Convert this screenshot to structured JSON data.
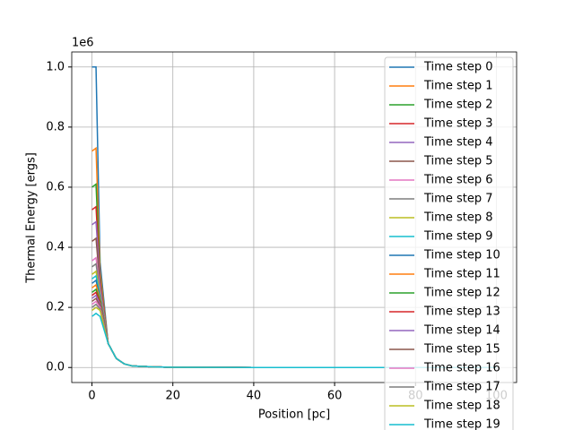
{
  "chart_data": {
    "type": "line",
    "x_label": "Position [pc]",
    "y_label": "Thermal Energy [ergs]",
    "y_offset_label": "1e6",
    "x": [
      0,
      1,
      2,
      4,
      6,
      8,
      10,
      15,
      20,
      40,
      60,
      80,
      100
    ],
    "xlim": [
      -5,
      105
    ],
    "xticks": [
      0,
      20,
      40,
      60,
      80,
      100
    ],
    "ylim": [
      -0.05,
      1.05
    ],
    "yticks": [
      {
        "value": 0,
        "label": "0.0"
      },
      0.2,
      0.4,
      0.6,
      0.8,
      {
        "value": 1,
        "label": "1.0"
      }
    ],
    "grid": true,
    "legend": "upper right",
    "series": [
      {
        "name": "Time step 0",
        "color": "#1f77b4",
        "values": [
          1.0,
          1.0,
          0.35,
          0.08,
          0.03,
          0.012,
          0.005,
          0.002,
          0.0005,
          0,
          0,
          0,
          0
        ]
      },
      {
        "name": "Time step 1",
        "color": "#ff7f0e",
        "values": [
          0.72,
          0.73,
          0.32,
          0.08,
          0.03,
          0.012,
          0.005,
          0.002,
          0.0005,
          0,
          0,
          0,
          0
        ]
      },
      {
        "name": "Time step 2",
        "color": "#2ca02c",
        "values": [
          0.6,
          0.61,
          0.3,
          0.08,
          0.03,
          0.012,
          0.005,
          0.002,
          0.0005,
          0,
          0,
          0,
          0
        ]
      },
      {
        "name": "Time step 3",
        "color": "#d62728",
        "values": [
          0.525,
          0.535,
          0.29,
          0.08,
          0.03,
          0.012,
          0.005,
          0.002,
          0.0005,
          0,
          0,
          0,
          0
        ]
      },
      {
        "name": "Time step 4",
        "color": "#9467bd",
        "values": [
          0.475,
          0.485,
          0.28,
          0.08,
          0.03,
          0.012,
          0.005,
          0.002,
          0.0005,
          0,
          0,
          0,
          0
        ]
      },
      {
        "name": "Time step 5",
        "color": "#8c564b",
        "values": [
          0.42,
          0.43,
          0.27,
          0.08,
          0.03,
          0.012,
          0.005,
          0.002,
          0.0005,
          0,
          0,
          0,
          0
        ]
      },
      {
        "name": "Time step 6",
        "color": "#e377c2",
        "values": [
          0.355,
          0.365,
          0.26,
          0.08,
          0.03,
          0.012,
          0.005,
          0.002,
          0.0005,
          0,
          0,
          0,
          0
        ]
      },
      {
        "name": "Time step 7",
        "color": "#7f7f7f",
        "values": [
          0.335,
          0.345,
          0.25,
          0.08,
          0.03,
          0.012,
          0.005,
          0.002,
          0.0005,
          0,
          0,
          0,
          0
        ]
      },
      {
        "name": "Time step 8",
        "color": "#bcbd22",
        "values": [
          0.31,
          0.32,
          0.24,
          0.08,
          0.03,
          0.012,
          0.005,
          0.002,
          0.0005,
          0,
          0,
          0,
          0
        ]
      },
      {
        "name": "Time step 9",
        "color": "#17becf",
        "values": [
          0.295,
          0.305,
          0.235,
          0.08,
          0.03,
          0.012,
          0.005,
          0.002,
          0.0005,
          0,
          0,
          0,
          0
        ]
      },
      {
        "name": "Time step 10",
        "color": "#1f77b4",
        "values": [
          0.28,
          0.29,
          0.23,
          0.08,
          0.03,
          0.012,
          0.005,
          0.002,
          0.0005,
          0,
          0,
          0,
          0
        ]
      },
      {
        "name": "Time step 11",
        "color": "#ff7f0e",
        "values": [
          0.265,
          0.275,
          0.225,
          0.08,
          0.03,
          0.012,
          0.005,
          0.002,
          0.0005,
          0,
          0,
          0,
          0
        ]
      },
      {
        "name": "Time step 12",
        "color": "#2ca02c",
        "values": [
          0.25,
          0.26,
          0.22,
          0.08,
          0.03,
          0.012,
          0.005,
          0.002,
          0.0005,
          0,
          0,
          0,
          0
        ]
      },
      {
        "name": "Time step 13",
        "color": "#d62728",
        "values": [
          0.24,
          0.25,
          0.215,
          0.08,
          0.03,
          0.012,
          0.005,
          0.002,
          0.0005,
          0,
          0,
          0,
          0
        ]
      },
      {
        "name": "Time step 14",
        "color": "#9467bd",
        "values": [
          0.23,
          0.24,
          0.21,
          0.08,
          0.03,
          0.012,
          0.005,
          0.002,
          0.0005,
          0,
          0,
          0,
          0
        ]
      },
      {
        "name": "Time step 15",
        "color": "#8c564b",
        "values": [
          0.22,
          0.23,
          0.205,
          0.08,
          0.03,
          0.012,
          0.005,
          0.002,
          0.0005,
          0,
          0,
          0,
          0
        ]
      },
      {
        "name": "Time step 16",
        "color": "#e377c2",
        "values": [
          0.21,
          0.22,
          0.2,
          0.08,
          0.03,
          0.012,
          0.005,
          0.002,
          0.0005,
          0,
          0,
          0,
          0
        ]
      },
      {
        "name": "Time step 17",
        "color": "#7f7f7f",
        "values": [
          0.2,
          0.21,
          0.195,
          0.08,
          0.03,
          0.012,
          0.005,
          0.002,
          0.0005,
          0,
          0,
          0,
          0
        ]
      },
      {
        "name": "Time step 18",
        "color": "#bcbd22",
        "values": [
          0.19,
          0.2,
          0.19,
          0.08,
          0.03,
          0.012,
          0.005,
          0.002,
          0.0005,
          0,
          0,
          0,
          0
        ]
      },
      {
        "name": "Time step 19",
        "color": "#17becf",
        "values": [
          0.17,
          0.18,
          0.17,
          0.08,
          0.03,
          0.012,
          0.005,
          0.002,
          0.0005,
          0,
          0,
          0,
          0
        ]
      }
    ]
  }
}
